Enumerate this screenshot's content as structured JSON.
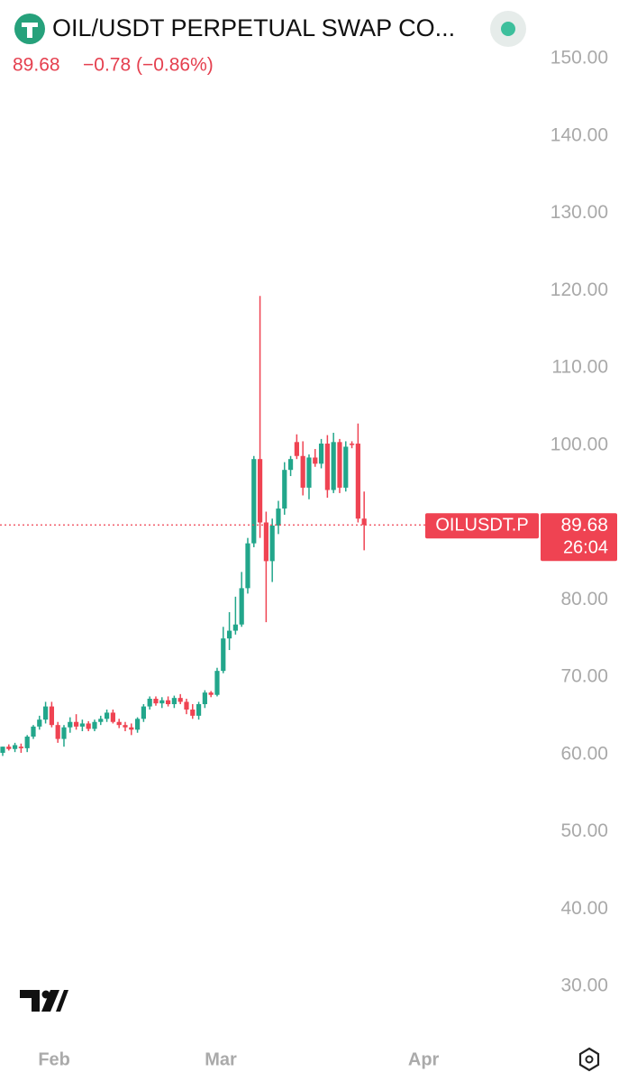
{
  "header": {
    "title": "OIL/USDT PERPETUAL SWAP CO...",
    "price": "89.68",
    "change": "−0.78 (−0.86%)"
  },
  "chart_data": {
    "type": "candlestick",
    "categories": [
      null,
      null,
      null,
      null,
      null,
      null,
      null,
      null,
      null,
      null,
      null,
      null,
      null,
      null,
      null,
      null,
      null,
      null,
      null,
      null,
      null,
      null,
      null,
      null,
      null,
      null,
      null,
      null,
      null,
      null,
      null,
      null,
      null,
      null,
      null,
      null,
      null,
      null,
      null,
      null,
      null,
      null,
      null,
      null,
      null,
      null,
      null,
      null,
      null,
      null,
      null,
      null,
      null,
      null,
      null,
      null,
      null,
      null,
      null,
      null
    ],
    "open": [
      60.2,
      61,
      60.7,
      61,
      60.8,
      62.3,
      63.6,
      64.5,
      66.2,
      63.8,
      62,
      63.5,
      64.2,
      63.6,
      64,
      63.3,
      64.2,
      64.6,
      65.4,
      64.2,
      63.8,
      63.5,
      63.2,
      64.6,
      66.2,
      67.2,
      66.6,
      67,
      66.5,
      67.3,
      66.8,
      65.8,
      65,
      66.5,
      68,
      67.7,
      70.8,
      75,
      76,
      76.8,
      81.5,
      87.3,
      98.2,
      90,
      85,
      89.6,
      91.8,
      96.8,
      100.4,
      98.6,
      94.5,
      98.4,
      97.6,
      100.2,
      94.2,
      100.4,
      94.5,
      100.2,
      100.2,
      90.5
    ],
    "high": [
      61,
      61.3,
      61.5,
      61.4,
      62.5,
      63.8,
      65,
      66.8,
      66.8,
      64.2,
      63.8,
      64.8,
      65.2,
      64.5,
      64.3,
      64.5,
      65,
      65.8,
      65.8,
      64.6,
      64.2,
      64,
      64.8,
      66.5,
      67.5,
      67.5,
      67.4,
      67.5,
      67.6,
      67.8,
      67.2,
      66.5,
      66.8,
      68.3,
      68.2,
      71.2,
      76.5,
      78.4,
      80.4,
      83.6,
      88,
      98.6,
      119.3,
      91.4,
      90.5,
      92.8,
      97.8,
      98.6,
      101.4,
      100.5,
      98.8,
      99.5,
      100.8,
      101.3,
      101.6,
      100.8,
      100.5,
      100.5,
      102.8,
      94
    ],
    "low": [
      59.8,
      60.5,
      60.3,
      60.2,
      60.3,
      62,
      63.2,
      64,
      63.5,
      61.5,
      61,
      62.8,
      63.2,
      63,
      63,
      63,
      63.8,
      64.2,
      64,
      63.4,
      63,
      62.5,
      62.8,
      64.2,
      65.8,
      66.3,
      66,
      66.2,
      66,
      66.5,
      65.2,
      64.6,
      64.5,
      66,
      67.4,
      67.5,
      70.5,
      73.5,
      75.5,
      76.5,
      80.8,
      86.8,
      88,
      77.1,
      82.3,
      88.5,
      91,
      96,
      98.2,
      93.5,
      93,
      97.2,
      97,
      93.2,
      93.8,
      93.8,
      94,
      99.6,
      90,
      86.4
    ],
    "close": [
      61,
      60.7,
      61.2,
      60.8,
      62.3,
      63.6,
      64.5,
      66.2,
      63.8,
      62,
      63.5,
      64.2,
      63.6,
      64,
      63.3,
      64.2,
      64.6,
      65.4,
      64.2,
      63.8,
      63.5,
      63.2,
      64.6,
      66.2,
      67.2,
      66.6,
      67,
      66.5,
      67.3,
      66.8,
      65.8,
      65,
      66.5,
      68,
      67.7,
      70.8,
      75,
      76,
      76.8,
      81.5,
      87.3,
      98.2,
      90,
      85,
      89.6,
      91.8,
      96.8,
      98.2,
      98.6,
      94.5,
      98.4,
      97.6,
      100.2,
      94.2,
      100.4,
      94.5,
      99.8,
      100.1,
      90.5,
      89.68
    ],
    "up_color": "#22a68b",
    "down_color": "#ef4352",
    "xlim": [
      -0.44,
      87.8
    ],
    "xticks": [
      {
        "value": 8.4,
        "label": "Feb"
      },
      {
        "value": 35.6,
        "label": "Mar"
      },
      {
        "value": 68.7,
        "label": "Apr"
      }
    ],
    "ylim": [
      30,
      150
    ],
    "yticks": [
      {
        "value": 150,
        "label": "150.00"
      },
      {
        "value": 140,
        "label": "140.00"
      },
      {
        "value": 130,
        "label": "130.00"
      },
      {
        "value": 120,
        "label": "120.00"
      },
      {
        "value": 110,
        "label": "110.00"
      },
      {
        "value": 100,
        "label": "100.00"
      },
      {
        "value": 80,
        "label": "80.00"
      },
      {
        "value": 70,
        "label": "70.00"
      },
      {
        "value": 60,
        "label": "60.00"
      },
      {
        "value": 50,
        "label": "50.00"
      },
      {
        "value": 40,
        "label": "40.00"
      },
      {
        "value": 30,
        "label": "30.00"
      }
    ],
    "price_line": {
      "value": 89.68,
      "label": "89.68",
      "symbol": "OILUSDT.P",
      "countdown": "26:04"
    }
  }
}
